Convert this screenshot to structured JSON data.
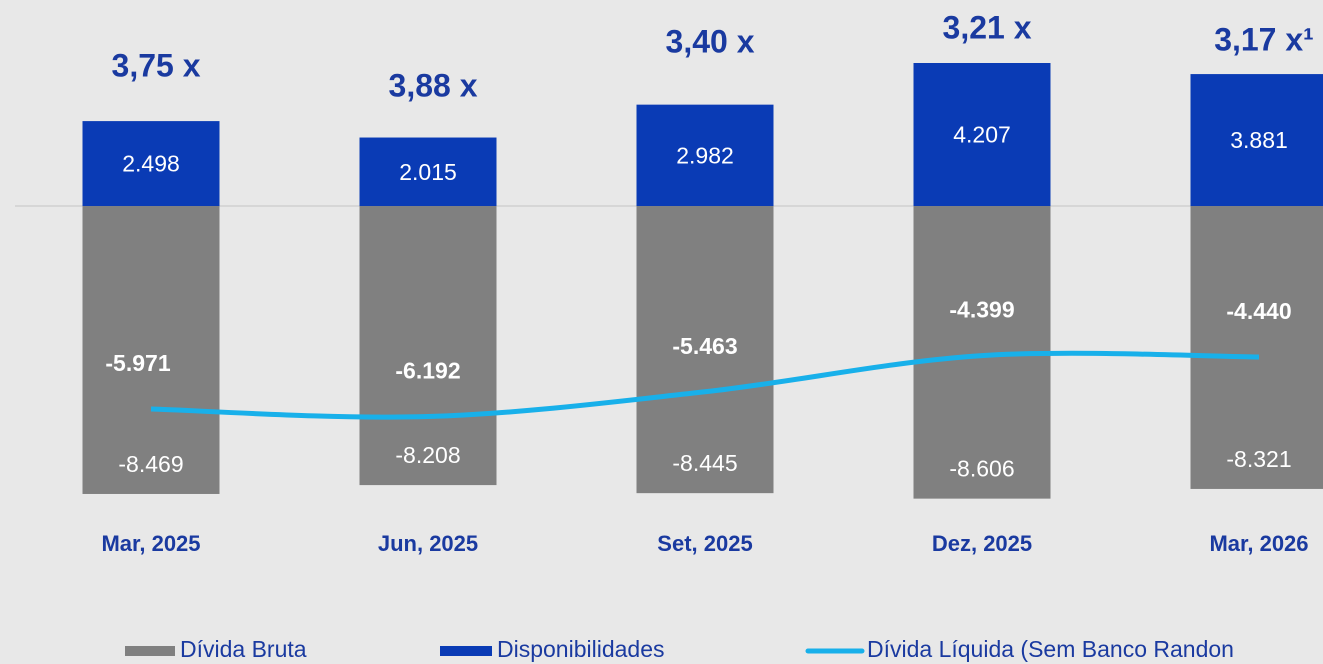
{
  "chart_data": {
    "type": "bar",
    "categories": [
      "Mar, 2025",
      "Jun, 2025",
      "Set, 2025",
      "Dez, 2025",
      "Mar, 2026"
    ],
    "annotations": [
      "3,75 x",
      "3,88 x",
      "3,40 x",
      "3,21 x",
      "3,17 x¹"
    ],
    "ylim": [
      -13470,
      6060
    ],
    "series": [
      {
        "name": "Dívida Bruta",
        "color": "#808080",
        "values": [
          -8469,
          -8208,
          -8445,
          -8606,
          -8321
        ],
        "value_labels": [
          "-8.469",
          "-8.208",
          "-8.445",
          "-8.606",
          "-8.321"
        ]
      },
      {
        "name": "Disponibilidades",
        "color": "#0a3bb5",
        "values": [
          2498,
          2015,
          2982,
          4207,
          3881
        ],
        "value_labels": [
          "2.498",
          "2.015",
          "2.982",
          "4.207",
          "3.881"
        ]
      },
      {
        "name": "Dívida Líquida (Sem Banco Randon",
        "type": "line",
        "color": "#18b0ea",
        "values": [
          -5971,
          -6192,
          -5463,
          -4399,
          -4440
        ],
        "value_labels": [
          "-5.971",
          "-6.192",
          "-5.463",
          "-4.399",
          "-4.440"
        ]
      }
    ]
  }
}
